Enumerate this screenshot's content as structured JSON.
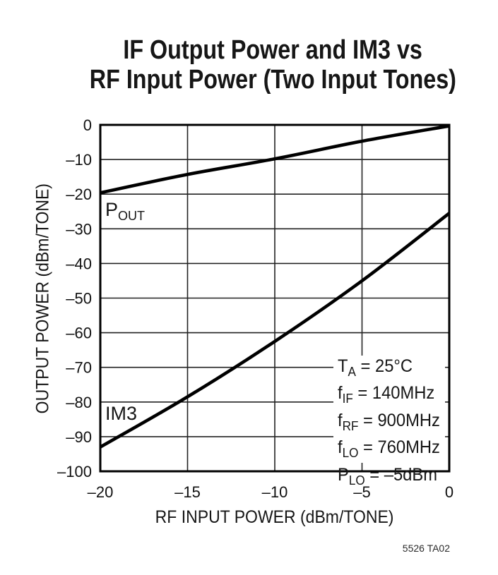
{
  "page": {
    "watermark": "5526 TA02",
    "background": "#ffffff"
  },
  "title": {
    "line1": "IF Output Power and IM3 vs",
    "line2": "RF Input Power (Two Input Tones)"
  },
  "chart_data": {
    "type": "line",
    "title": "IF Output Power and IM3 vs RF Input Power (Two Input Tones)",
    "xlabel": "RF INPUT POWER (dBm/TONE)",
    "ylabel": "OUTPUT POWER (dBm/TONE)",
    "xlim": [
      -20,
      0
    ],
    "ylim": [
      -100,
      0
    ],
    "grid": true,
    "line_color": "#000000",
    "xticks": {
      "values": [
        -20,
        -15,
        -10,
        -5,
        0
      ],
      "labels": [
        "–20",
        "–15",
        "–10",
        "–5",
        "0"
      ]
    },
    "yticks": {
      "values": [
        0,
        -10,
        -20,
        -30,
        -40,
        -50,
        -60,
        -70,
        -80,
        -90,
        -100
      ],
      "labels": [
        "0",
        "–10",
        "–20",
        "–30",
        "–40",
        "–50",
        "–60",
        "–70",
        "–80",
        "–90",
        "–100"
      ]
    },
    "series": [
      {
        "name": "POUT",
        "label_base": "P",
        "label_sub": "OUT",
        "color": "#000000",
        "points": [
          [
            -20,
            -19.6
          ],
          [
            -15,
            -14.3
          ],
          [
            -10,
            -9.8
          ],
          [
            -5,
            -4.7
          ],
          [
            0,
            -0.3
          ]
        ]
      },
      {
        "name": "IM3",
        "label": "IM3",
        "color": "#000000",
        "points": [
          [
            -20,
            -93
          ],
          [
            -15,
            -78.5
          ],
          [
            -10,
            -62.5
          ],
          [
            -5,
            -45
          ],
          [
            0,
            -25.5
          ]
        ]
      }
    ],
    "annotation_lines": [
      {
        "base": "T",
        "sub": "A",
        "rest": " = 25°C"
      },
      {
        "base": "f",
        "sub": "IF",
        "rest": " = 140MHz"
      },
      {
        "base": "f",
        "sub": "RF",
        "rest": " = 900MHz"
      },
      {
        "base": "f",
        "sub": "LO",
        "rest": " = 760MHz"
      },
      {
        "base": "P",
        "sub": "LO",
        "rest": " = –5dBm"
      }
    ]
  }
}
